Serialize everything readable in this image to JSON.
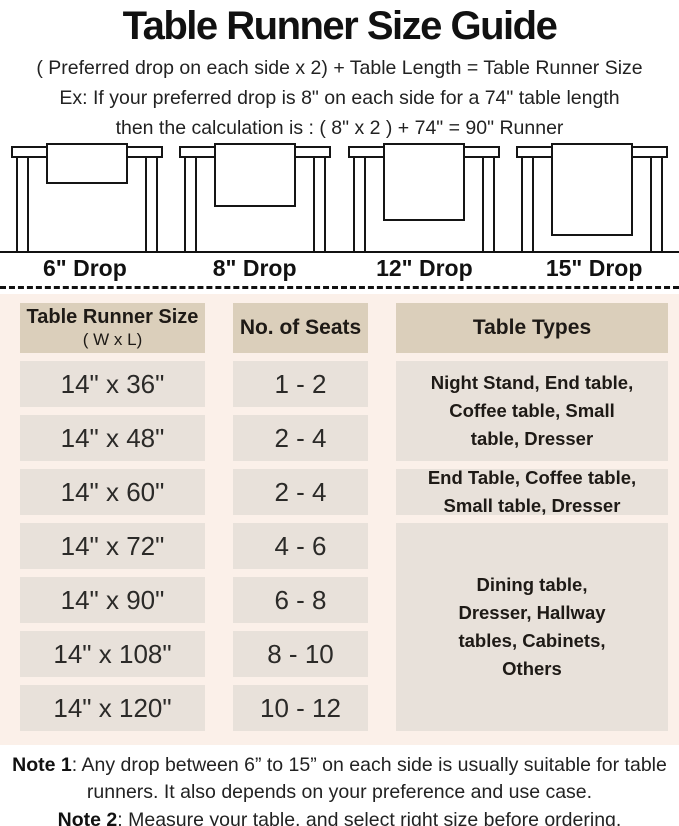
{
  "title": "Table Runner Size Guide",
  "formula": "( Preferred drop on each side x 2) + Table Length = Table Runner Size",
  "example": {
    "line1": "Ex: If your preferred drop is 8\" on each side for a 74\" table length",
    "line2": "then the calculation is : ( 8\" x 2 ) + 74\" = 90\" Runner"
  },
  "drops": [
    {
      "label": "6\" Drop"
    },
    {
      "label": "8\" Drop"
    },
    {
      "label": "12\" Drop"
    },
    {
      "label": "15\" Drop"
    }
  ],
  "table": {
    "headers": {
      "col1_title": "Table Runner Size",
      "col1_sub": "( W x L)",
      "col2": "No. of Seats",
      "col3": "Table Types"
    },
    "rows": [
      {
        "size": "14\" x 36\"",
        "seats": "1 - 2"
      },
      {
        "size": "14\" x 48\"",
        "seats": "2 - 4"
      },
      {
        "size": "14\" x 60\"",
        "seats": "2 - 4"
      },
      {
        "size": "14\" x 72\"",
        "seats": "4 - 6"
      },
      {
        "size": "14\" x 90\"",
        "seats": "6 - 8"
      },
      {
        "size": "14\" x 108\"",
        "seats": "8 - 10"
      },
      {
        "size": "14\" x 120\"",
        "seats": "10 - 12"
      }
    ],
    "type_groups": [
      {
        "text": "Night Stand, End table,\nCoffee table, Small\ntable, Dresser",
        "rows_spanned": "14\" x 36\" – 14\" x 48\""
      },
      {
        "text": "End Table, Coffee table,\nSmall table, Dresser",
        "rows_spanned": "14\" x 60\""
      },
      {
        "text": "Dining table,\nDresser, Hallway\ntables, Cabinets,\nOthers",
        "rows_spanned": "14\" x 72\" – 14\" x 120\""
      }
    ]
  },
  "notes": [
    {
      "label": "Note 1",
      "rest": ": Any drop between 6” to 15” on each side is usually suitable for table runners. It also depends on your preference and use case."
    },
    {
      "label": "Note 2",
      "rest": ": Measure your table, and select right size before ordering."
    }
  ],
  "colors": {
    "panel_background": "#fbf0e9",
    "header_cell": "#dbcfbb",
    "data_cell": "#e8e1da",
    "line_art": "#151515",
    "text": "#1c1c1c"
  }
}
